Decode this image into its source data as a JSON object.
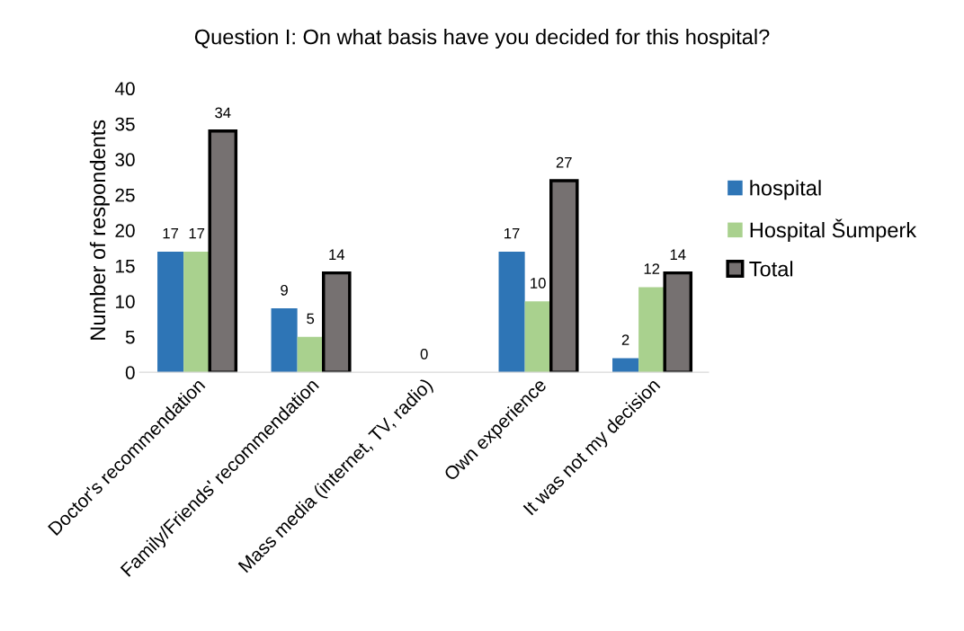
{
  "chart_data": {
    "type": "bar",
    "title": "Question I: On what basis have you decided for this hospital?",
    "ylabel": "Number of respondents",
    "categories": [
      "Doctor's recommendation",
      "Family/Friends' recommendation",
      "Mass media (internet, TV, radio)",
      "Own experience",
      "It was not my decision"
    ],
    "series": [
      {
        "name": "hospital",
        "color": "#2e75b6",
        "values": [
          17,
          9,
          0,
          17,
          2
        ],
        "value_labels": [
          "17",
          "9",
          null,
          "17",
          "2"
        ]
      },
      {
        "name": "Hospital Šumperk",
        "color": "#a9d18e",
        "values": [
          17,
          5,
          0,
          10,
          12
        ],
        "value_labels": [
          "17",
          "5",
          "0",
          "10",
          "12"
        ]
      },
      {
        "name": "Total",
        "color": "#767171",
        "values": [
          34,
          14,
          0,
          27,
          14
        ],
        "value_labels": [
          "34",
          "14",
          null,
          "27",
          "14"
        ]
      }
    ],
    "ylim": [
      0,
      40
    ],
    "yticks": [
      0,
      5,
      10,
      15,
      20,
      25,
      30,
      35,
      40
    ],
    "grid": false,
    "legend": "right"
  }
}
